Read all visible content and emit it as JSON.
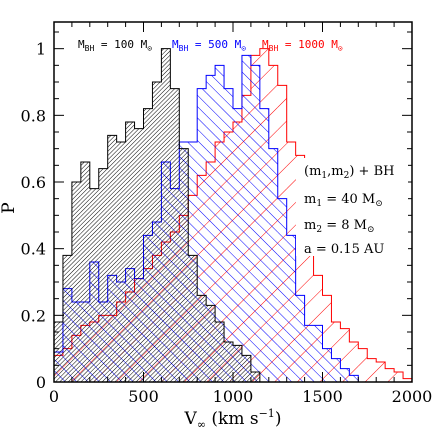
{
  "chart_data": {
    "type": "bar",
    "xlabel": "V∞ (km s⁻¹)",
    "ylabel": "P",
    "xlim": [
      0,
      2000
    ],
    "ylim": [
      0,
      1.08
    ],
    "x_ticks": [
      "0",
      "500",
      "1000",
      "1500",
      "2000"
    ],
    "y_ticks": [
      "0",
      "0.2",
      "0.4",
      "0.6",
      "0.8",
      "1"
    ],
    "bin_width": 50,
    "legend": [
      "M_BH = 100 M⊙",
      "M_BH = 500 M⊙",
      "M_BH = 1000 M⊙"
    ],
    "annotation": [
      "(m1,m2) + BH",
      "m1 = 40 M⊙",
      "m2 = 8 M⊙",
      "a = 0.15 AU"
    ],
    "series": [
      {
        "name": "M_BH = 100 M⊙",
        "color": "#000000",
        "bins_start": 0,
        "values": [
          0.18,
          0.38,
          0.6,
          0.66,
          0.58,
          0.64,
          0.74,
          0.72,
          0.78,
          0.76,
          0.82,
          0.9,
          1.0,
          0.88,
          0.7,
          0.38,
          0.26,
          0.23,
          0.18,
          0.12,
          0.11,
          0.08,
          0.03
        ]
      },
      {
        "name": "M_BH = 500 M⊙",
        "color": "#0000ff",
        "bins_start": 0,
        "values": [
          0.09,
          0.28,
          0.24,
          0.24,
          0.36,
          0.24,
          0.32,
          0.3,
          0.34,
          0.31,
          0.44,
          0.48,
          0.66,
          0.58,
          0.72,
          0.72,
          0.88,
          0.92,
          0.95,
          0.88,
          0.82,
          0.98,
          0.95,
          0.82,
          0.7,
          0.55,
          0.44,
          0.26,
          0.17,
          0.17,
          0.1,
          0.07,
          0.04,
          0.02
        ]
      },
      {
        "name": "M_BH = 1000 M⊙",
        "color": "#ff0000",
        "bins_start": 0,
        "values": [
          0.08,
          0.1,
          0.14,
          0.17,
          0.18,
          0.2,
          0.2,
          0.24,
          0.27,
          0.31,
          0.34,
          0.38,
          0.42,
          0.45,
          0.5,
          0.56,
          0.62,
          0.66,
          0.72,
          0.75,
          0.78,
          0.86,
          0.98,
          1.0,
          0.95,
          0.89,
          0.72,
          0.68,
          0.42,
          0.32,
          0.26,
          0.18,
          0.16,
          0.12,
          0.1,
          0.07,
          0.06,
          0.04,
          0.03,
          0.01
        ]
      }
    ]
  }
}
